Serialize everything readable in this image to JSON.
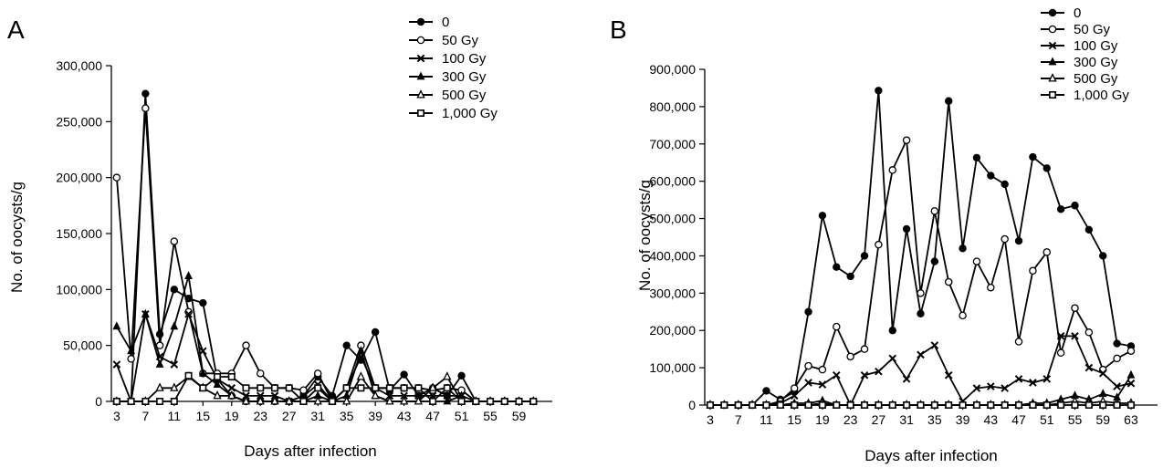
{
  "figure": {
    "panels": [
      {
        "letter": "A",
        "xlabel": "Days after infection",
        "ylabel": "No. of oocysts/g"
      },
      {
        "letter": "B",
        "xlabel": "Days after infection",
        "ylabel": "No. of oocysts/g"
      }
    ]
  },
  "chart_data": [
    {
      "type": "line",
      "panel": "A",
      "title": "",
      "xlabel": "Days after infection",
      "ylabel": "No. of oocysts/g",
      "xlim": [
        2,
        63
      ],
      "ylim": [
        0,
        300000
      ],
      "xticks": [
        3,
        7,
        11,
        15,
        19,
        23,
        27,
        31,
        35,
        39,
        43,
        47,
        51,
        55,
        59
      ],
      "xtick_labels": [
        "3",
        "7",
        "11",
        "15",
        "19",
        "23",
        "27",
        "31",
        "35",
        "39",
        "43",
        "47",
        "51",
        "55",
        "59"
      ],
      "yticks": [
        0,
        50000,
        100000,
        150000,
        200000,
        250000,
        300000
      ],
      "ytick_labels": [
        "0",
        "50,000",
        "100,000",
        "150,000",
        "200,000",
        "250,000",
        "300,000"
      ],
      "grid": false,
      "legend_position": "top-right",
      "series": [
        {
          "name": "0",
          "marker": "filled-circle",
          "x": [
            3,
            5,
            7,
            9,
            11,
            13,
            15,
            17,
            19,
            21,
            23,
            25,
            27,
            29,
            31,
            33,
            35,
            37,
            39,
            41,
            43,
            45,
            47,
            49,
            51,
            53,
            55,
            57,
            59,
            61
          ],
          "y": [
            0,
            0,
            275000,
            60000,
            100000,
            92000,
            88000,
            20000,
            5000,
            0,
            0,
            0,
            0,
            5000,
            22000,
            5000,
            50000,
            37000,
            62000,
            10000,
            24000,
            5000,
            12000,
            5000,
            23000,
            0,
            0,
            0,
            0,
            0
          ]
        },
        {
          "name": "50 Gy",
          "marker": "open-circle",
          "x": [
            3,
            5,
            7,
            9,
            11,
            13,
            15,
            17,
            19,
            21,
            23,
            25,
            27,
            29,
            31,
            33,
            35,
            37,
            39,
            41,
            43,
            45,
            47,
            49,
            51,
            53,
            55,
            57,
            59,
            61
          ],
          "y": [
            200000,
            38000,
            262000,
            50000,
            143000,
            80000,
            25000,
            25000,
            25000,
            50000,
            25000,
            12000,
            12000,
            10000,
            25000,
            0,
            12000,
            50000,
            12000,
            12000,
            12000,
            12000,
            10000,
            12000,
            10000,
            0,
            0,
            0,
            0,
            0
          ]
        },
        {
          "name": "100 Gy",
          "marker": "x",
          "x": [
            3,
            5,
            7,
            9,
            11,
            13,
            15,
            17,
            19,
            21,
            23,
            25,
            27,
            29,
            31,
            33,
            35,
            37,
            39,
            41,
            43,
            45,
            47,
            49,
            51,
            53,
            55,
            57,
            59,
            61
          ],
          "y": [
            33000,
            0,
            78000,
            40000,
            33000,
            78000,
            45000,
            20000,
            12000,
            5000,
            5000,
            5000,
            0,
            5000,
            15000,
            0,
            12000,
            40000,
            12000,
            5000,
            5000,
            5000,
            5000,
            5000,
            5000,
            0,
            0,
            0,
            0,
            0
          ]
        },
        {
          "name": "300 Gy",
          "marker": "filled-triangle",
          "x": [
            3,
            5,
            7,
            9,
            11,
            13,
            15,
            17,
            19,
            21,
            23,
            25,
            27,
            29,
            31,
            33,
            35,
            37,
            39,
            41,
            43,
            45,
            47,
            49,
            51,
            53,
            55,
            57,
            59,
            61
          ],
          "y": [
            67000,
            45000,
            78000,
            33000,
            67000,
            112000,
            25000,
            15000,
            5000,
            0,
            0,
            0,
            0,
            0,
            5000,
            0,
            5000,
            45000,
            5000,
            0,
            0,
            0,
            0,
            0,
            5000,
            0,
            0,
            0,
            0,
            0
          ]
        },
        {
          "name": "500 Gy",
          "marker": "open-triangle",
          "x": [
            3,
            5,
            7,
            9,
            11,
            13,
            15,
            17,
            19,
            21,
            23,
            25,
            27,
            29,
            31,
            33,
            35,
            37,
            39,
            41,
            43,
            45,
            47,
            49,
            51,
            53,
            55,
            57,
            59,
            61
          ],
          "y": [
            0,
            0,
            0,
            12000,
            12000,
            22000,
            12000,
            5000,
            5000,
            0,
            0,
            0,
            0,
            0,
            0,
            0,
            0,
            22000,
            5000,
            0,
            0,
            0,
            12000,
            22000,
            0,
            0,
            0,
            0,
            0,
            0
          ]
        },
        {
          "name": "1,000 Gy",
          "marker": "square",
          "x": [
            3,
            5,
            7,
            9,
            11,
            13,
            15,
            17,
            19,
            21,
            23,
            25,
            27,
            29,
            31,
            33,
            35,
            37,
            39,
            41,
            43,
            45,
            47,
            49,
            51,
            53,
            55,
            57,
            59,
            61
          ],
          "y": [
            0,
            0,
            0,
            0,
            0,
            23000,
            12000,
            22000,
            22000,
            12000,
            12000,
            12000,
            12000,
            0,
            12000,
            0,
            12000,
            12000,
            12000,
            12000,
            12000,
            12000,
            0,
            12000,
            0,
            0,
            0,
            0,
            0,
            0
          ]
        }
      ]
    },
    {
      "type": "line",
      "panel": "B",
      "title": "",
      "xlabel": "Days after infection",
      "ylabel": "No. of oocysts/g",
      "xlim": [
        3,
        66
      ],
      "ylim": [
        0,
        900000
      ],
      "xticks": [
        3,
        7,
        11,
        15,
        19,
        23,
        27,
        31,
        35,
        39,
        43,
        47,
        51,
        55,
        59,
        63
      ],
      "xtick_labels": [
        "3",
        "7",
        "11",
        "15",
        "19",
        "23",
        "27",
        "31",
        "35",
        "39",
        "43",
        "47",
        "51",
        "55",
        "59",
        "63"
      ],
      "yticks": [
        0,
        100000,
        200000,
        300000,
        400000,
        500000,
        600000,
        700000,
        800000,
        900000
      ],
      "ytick_labels": [
        "0",
        "100,000",
        "200,000",
        "300,000",
        "400,000",
        "500,000",
        "600,000",
        "700,000",
        "800,000",
        "900,000"
      ],
      "grid": false,
      "legend_position": "top-right",
      "series": [
        {
          "name": "0",
          "marker": "filled-circle",
          "x": [
            3,
            5,
            7,
            9,
            11,
            13,
            15,
            17,
            19,
            21,
            23,
            25,
            27,
            29,
            31,
            33,
            35,
            37,
            39,
            41,
            43,
            45,
            47,
            49,
            51,
            53,
            55,
            57,
            59,
            61,
            63
          ],
          "y": [
            0,
            0,
            0,
            0,
            38000,
            15000,
            35000,
            250000,
            508000,
            370000,
            345000,
            400000,
            843000,
            200000,
            472000,
            245000,
            385000,
            815000,
            420000,
            663000,
            615000,
            592000,
            440000,
            665000,
            635000,
            525000,
            535000,
            470000,
            400000,
            165000,
            158000
          ]
        },
        {
          "name": "50 Gy",
          "marker": "open-circle",
          "x": [
            3,
            5,
            7,
            9,
            11,
            13,
            15,
            17,
            19,
            21,
            23,
            25,
            27,
            29,
            31,
            33,
            35,
            37,
            39,
            41,
            43,
            45,
            47,
            49,
            51,
            53,
            55,
            57,
            59,
            61,
            63
          ],
          "y": [
            0,
            0,
            0,
            0,
            0,
            10000,
            45000,
            105000,
            95000,
            210000,
            130000,
            150000,
            430000,
            630000,
            710000,
            300000,
            520000,
            330000,
            240000,
            385000,
            315000,
            445000,
            170000,
            360000,
            410000,
            140000,
            260000,
            195000,
            95000,
            125000,
            145000
          ]
        },
        {
          "name": "100 Gy",
          "marker": "x",
          "x": [
            3,
            5,
            7,
            9,
            11,
            13,
            15,
            17,
            19,
            21,
            23,
            25,
            27,
            29,
            31,
            33,
            35,
            37,
            39,
            41,
            43,
            45,
            47,
            49,
            51,
            53,
            55,
            57,
            59,
            61,
            63
          ],
          "y": [
            0,
            0,
            0,
            0,
            0,
            5000,
            25000,
            60000,
            55000,
            80000,
            0,
            80000,
            90000,
            125000,
            70000,
            135000,
            160000,
            80000,
            10000,
            45000,
            50000,
            45000,
            70000,
            60000,
            70000,
            185000,
            185000,
            100000,
            85000,
            50000,
            58000
          ]
        },
        {
          "name": "300 Gy",
          "marker": "filled-triangle",
          "x": [
            3,
            5,
            7,
            9,
            11,
            13,
            15,
            17,
            19,
            21,
            23,
            25,
            27,
            29,
            31,
            33,
            35,
            37,
            39,
            41,
            43,
            45,
            47,
            49,
            51,
            53,
            55,
            57,
            59,
            61,
            63
          ],
          "y": [
            0,
            0,
            0,
            0,
            0,
            0,
            5000,
            5000,
            12000,
            0,
            0,
            0,
            0,
            0,
            0,
            0,
            0,
            0,
            0,
            0,
            0,
            0,
            0,
            5000,
            5000,
            15000,
            25000,
            15000,
            30000,
            20000,
            80000
          ]
        },
        {
          "name": "500 Gy",
          "marker": "open-triangle",
          "x": [
            3,
            5,
            7,
            9,
            11,
            13,
            15,
            17,
            19,
            21,
            23,
            25,
            27,
            29,
            31,
            33,
            35,
            37,
            39,
            41,
            43,
            45,
            47,
            49,
            51,
            53,
            55,
            57,
            59,
            61,
            63
          ],
          "y": [
            0,
            0,
            0,
            0,
            0,
            0,
            0,
            0,
            5000,
            0,
            0,
            0,
            0,
            0,
            0,
            0,
            0,
            0,
            0,
            0,
            0,
            0,
            0,
            0,
            0,
            5000,
            10000,
            5000,
            10000,
            5000,
            5000
          ]
        },
        {
          "name": "1,000 Gy",
          "marker": "square",
          "x": [
            3,
            5,
            7,
            9,
            11,
            13,
            15,
            17,
            19,
            21,
            23,
            25,
            27,
            29,
            31,
            33,
            35,
            37,
            39,
            41,
            43,
            45,
            47,
            49,
            51,
            53,
            55,
            57,
            59,
            61,
            63
          ],
          "y": [
            0,
            0,
            0,
            0,
            0,
            0,
            0,
            0,
            0,
            0,
            0,
            0,
            0,
            0,
            0,
            0,
            0,
            0,
            0,
            0,
            0,
            0,
            0,
            0,
            0,
            0,
            0,
            0,
            0,
            0,
            0
          ]
        }
      ]
    }
  ]
}
